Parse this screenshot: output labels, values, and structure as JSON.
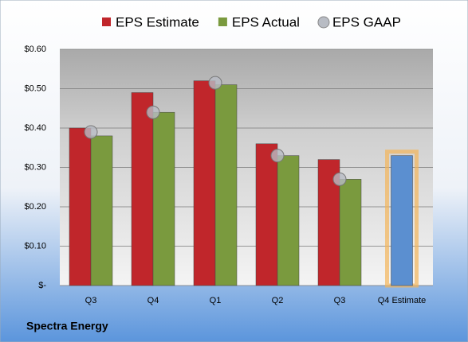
{
  "chart_data": {
    "type": "bar",
    "footer": "Spectra Energy",
    "categories": [
      "Q3",
      "Q4",
      "Q1",
      "Q2",
      "Q3",
      "Q4 Estimate"
    ],
    "series": [
      {
        "name": "EPS Estimate",
        "color": "#c0262b",
        "values": [
          0.4,
          0.49,
          0.52,
          0.36,
          0.32,
          null
        ]
      },
      {
        "name": "EPS Actual",
        "color": "#7a9a3e",
        "values": [
          0.38,
          0.44,
          0.51,
          0.33,
          0.27,
          null
        ]
      },
      {
        "name": "EPS GAAP",
        "color": "#b8bcc4",
        "values": [
          0.39,
          0.44,
          0.515,
          0.33,
          0.27,
          null
        ]
      }
    ],
    "estimate": {
      "value": 0.33,
      "color": "#5b8fd0"
    },
    "ylim": [
      0,
      0.6
    ],
    "yticks": [
      {
        "value": 0,
        "label": "$-"
      },
      {
        "value": 0.1,
        "label": "$0.10"
      },
      {
        "value": 0.2,
        "label": "$0.20"
      },
      {
        "value": 0.3,
        "label": "$0.30"
      },
      {
        "value": 0.4,
        "label": "$0.40"
      },
      {
        "value": 0.5,
        "label": "$0.50"
      },
      {
        "value": 0.6,
        "label": "$0.60"
      }
    ],
    "grid": true
  }
}
